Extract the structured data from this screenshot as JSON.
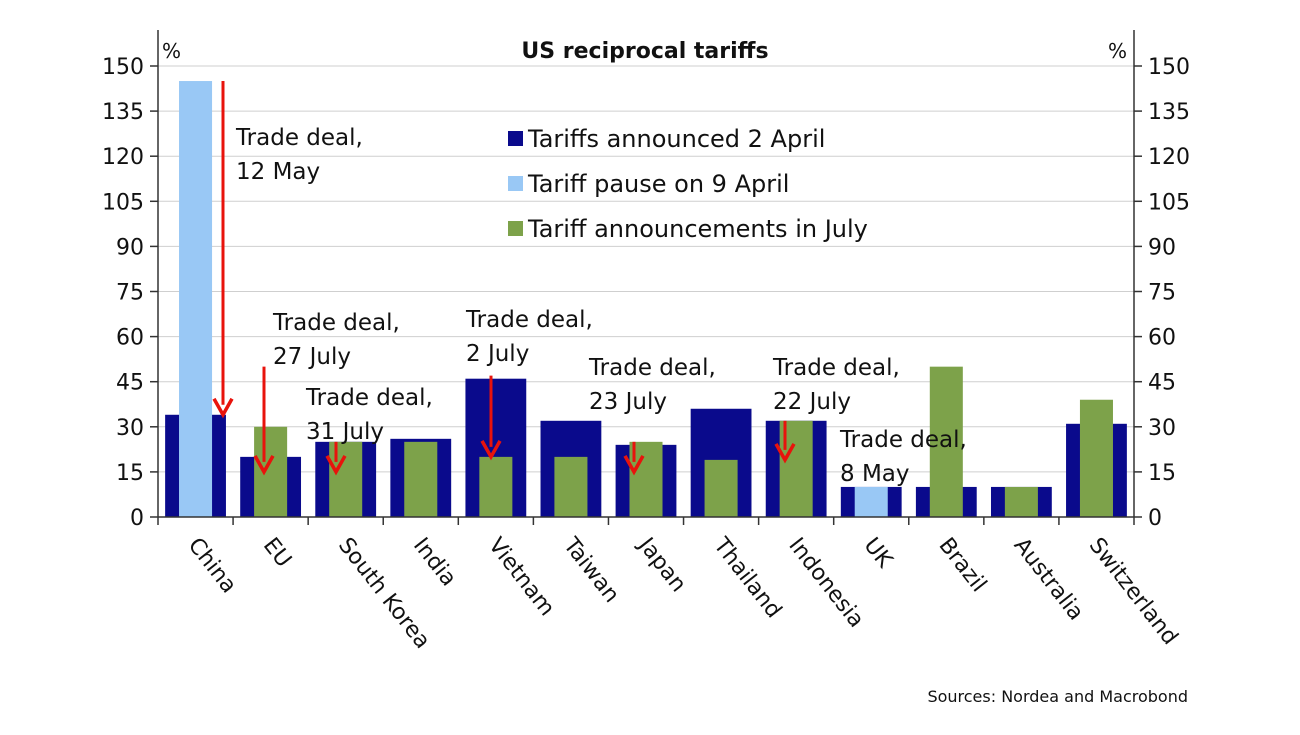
{
  "chart_data": {
    "type": "bar",
    "title": "US reciprocal tariffs",
    "left_unit": "%",
    "right_unit": "%",
    "ylim": [
      0,
      150
    ],
    "yticks": [
      0,
      15,
      30,
      45,
      60,
      75,
      90,
      105,
      120,
      135,
      150
    ],
    "categories": [
      "China",
      "EU",
      "South Korea",
      "India",
      "Vietnam",
      "Taiwan",
      "Japan",
      "Thailand",
      "Indonesia",
      "UK",
      "Brazil",
      "Australia",
      "Switzerland"
    ],
    "series": [
      {
        "name": "Tariffs announced 2 April",
        "color": "#0a0a8c",
        "values": [
          34,
          20,
          25,
          26,
          46,
          32,
          24,
          36,
          32,
          10,
          10,
          10,
          31
        ]
      },
      {
        "name": "Tariff pause on 9 April",
        "color": "#99c8f5",
        "values": [
          145,
          null,
          null,
          null,
          null,
          null,
          null,
          null,
          null,
          10,
          null,
          null,
          null
        ]
      },
      {
        "name": "Tariff announcements in July",
        "color": "#7da24a",
        "values": [
          null,
          30,
          25,
          25,
          20,
          20,
          25,
          19,
          32,
          null,
          50,
          10,
          39
        ]
      }
    ],
    "annotations": [
      {
        "lines": [
          "Trade deal,",
          "12 May"
        ],
        "category": "China",
        "arrow_from": 145,
        "arrow_to": 34
      },
      {
        "lines": [
          "Trade deal,",
          "27 July"
        ],
        "category": "EU",
        "arrow_from": 50,
        "arrow_to": 15
      },
      {
        "lines": [
          "Trade deal,",
          "31 July"
        ],
        "category": "South Korea",
        "arrow_from": 25,
        "arrow_to": 15
      },
      {
        "lines": [
          "Trade deal,",
          "2 July"
        ],
        "category": "Vietnam",
        "arrow_from": 47,
        "arrow_to": 20
      },
      {
        "lines": [
          "Trade deal,",
          "23 July"
        ],
        "category": "Japan",
        "arrow_from": 25,
        "arrow_to": 15
      },
      {
        "lines": [
          "Trade deal,",
          "22 July"
        ],
        "category": "Indonesia",
        "arrow_from": 32,
        "arrow_to": 19
      },
      {
        "lines": [
          "Trade deal,",
          "8 May"
        ],
        "category": "UK",
        "arrow_from": null,
        "arrow_to": null
      }
    ],
    "legend": "top-center",
    "grid": true
  },
  "source": "Sources: Nordea and Macrobond"
}
